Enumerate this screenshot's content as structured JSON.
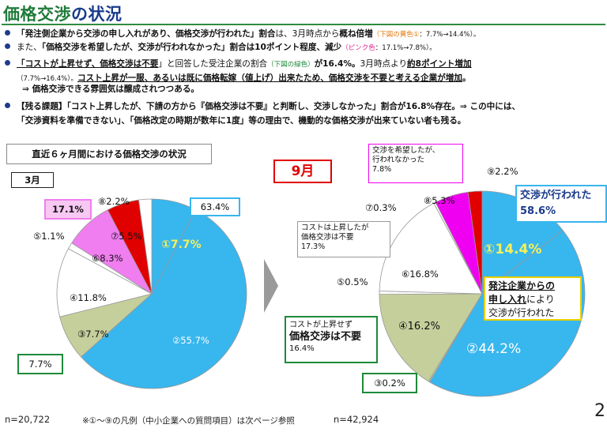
{
  "title": {
    "main": "価格交渉",
    "suffix": "の状況"
  },
  "bullets": [
    {
      "parts": [
        {
          "t": "「発注側企業から交渉の申し入れがあり、価格交渉が行われた」割合",
          "c": "b"
        },
        {
          "t": "は、3月時点から"
        },
        {
          "t": "概ね倍増",
          "c": "b"
        },
        {
          "t": "（下図の黄色①",
          "c": "orn"
        },
        {
          "t": "：7.7%→14.4%）。",
          "c": "sm"
        }
      ]
    },
    {
      "parts": [
        {
          "t": "また、"
        },
        {
          "t": "「価格交渉を希望したが、交渉が行われなかった」割合は10ポイント程度、減少",
          "c": "b"
        },
        {
          "t": "（ピンク色",
          "c": "pnk"
        },
        {
          "t": "：17.1%→7.8%）。",
          "c": "sm"
        }
      ]
    },
    {
      "parts": [
        {
          "t": "「コストが上昇せず、価格交渉は不要",
          "c": "b u"
        },
        {
          "t": "」と回答した受注企業の割合"
        },
        {
          "t": "（下図の緑色）",
          "c": "grn"
        },
        {
          "t": "が16.4%。",
          "c": "b"
        },
        {
          "t": "3月時点より"
        },
        {
          "t": "約8ポイント増加",
          "c": "b u"
        }
      ]
    },
    {
      "indent": true,
      "parts": [
        {
          "t": "（7.7%→16.4%）。",
          "c": "sm"
        },
        {
          "t": "コスト上昇が一服、あるいは既に価格転嫁（値上げ）出来たため、価格交渉を不要と考える企業が増加",
          "c": "b u"
        },
        {
          "t": "。",
          "c": "b"
        }
      ]
    },
    {
      "indent2": true,
      "parts": [
        {
          "t": "⇒ 価格交渉できる雰囲気は醸成されつつある。",
          "c": "b"
        }
      ]
    },
    {
      "parts": [
        {
          "t": "【残る課題】「コスト上昇したが、下請の方から『価格交渉は不要』と判断し、交渉しなかった」割合が16.8%存在。⇒ この中には、",
          "c": "b"
        }
      ]
    },
    {
      "indent": true,
      "parts": [
        {
          "t": "「交渉資料を準備できない」、「価格改定の時期が数年に1度」等の理由で、機動的な価格交渉が出来ていない者も残る。",
          "c": "b"
        }
      ]
    }
  ],
  "subtitle": "直近６ヶ月間における価格交渉の状況",
  "chart_data": [
    {
      "type": "pie",
      "title": "3月",
      "footnote": "n=20,722",
      "slices": [
        {
          "label": "①",
          "value": 7.7,
          "color": "#38b6ee"
        },
        {
          "label": "②",
          "value": 55.7,
          "color": "#38b6ee"
        },
        {
          "label": "③",
          "value": 7.7,
          "color": "#c4cf9c"
        },
        {
          "label": "④",
          "value": 11.8,
          "color": "#ffffff"
        },
        {
          "label": "⑤",
          "value": 1.1,
          "color": "#ffffff"
        },
        {
          "label": "⑥",
          "value": 8.3,
          "color": "#f07ef0"
        },
        {
          "label": "⑦",
          "value": 5.5,
          "color": "#e00000"
        },
        {
          "label": "⑧",
          "value": 2.2,
          "color": "#ffffff"
        }
      ],
      "texts": {
        "s1": "①7.7%",
        "s2": "②55.7%",
        "s3": "③7.7%",
        "s4": "④11.8%",
        "s5": "⑤1.1%",
        "s6": "⑥8.3%",
        "s7": "⑦5.5%",
        "s8": "⑧2.2%",
        "total12": "63.4%",
        "pink": "17.1%",
        "green": "7.7%"
      }
    },
    {
      "type": "pie",
      "title": "9月",
      "footnote": "n=42,924",
      "slices": [
        {
          "label": "①",
          "value": 14.4,
          "color": "#38b6ee"
        },
        {
          "label": "②",
          "value": 44.2,
          "color": "#38b6ee"
        },
        {
          "label": "③",
          "value": 0.2,
          "color": "#c4cf9c"
        },
        {
          "label": "④",
          "value": 16.2,
          "color": "#c4cf9c"
        },
        {
          "label": "⑤",
          "value": 0.5,
          "color": "#ffffff"
        },
        {
          "label": "⑥",
          "value": 16.8,
          "color": "#ffffff"
        },
        {
          "label": "⑦",
          "value": 0.3,
          "color": "#ffffff"
        },
        {
          "label": "⑧",
          "value": 5.3,
          "color": "#f000f0"
        },
        {
          "label": "⑨",
          "value": 2.2,
          "color": "#e00000"
        }
      ],
      "texts": {
        "s1": "①14.4%",
        "s2": "②44.2%",
        "s3": "③0.2%",
        "s4": "④16.2%",
        "s5": "⑤0.5%",
        "s6": "⑥16.8%",
        "s7": "⑦0.3%",
        "s8": "⑧5.3%",
        "s9": "⑨2.2%",
        "cost_up_1": "コストは上昇したが",
        "cost_up_2": "価格交渉は不要",
        "cost_up_3": "17.3%",
        "no_cost_1": "コストが上昇せず",
        "no_cost_2": "価格交渉は不要",
        "no_cost_3": "16.4%",
        "hope_1": "交渉を希望したが、",
        "hope_2": "行われなかった",
        "hope_3": "7.8%",
        "done_1": "交渉が行われた",
        "done_2": "58.6%",
        "req_1": "発注企業からの",
        "req_2": "申し入れ",
        "req_2b": "により",
        "req_3": "交渉が行われた"
      }
    }
  ],
  "footer": {
    "legend_note": "※①～⑨の凡例（中小企業への質問項目）は次ページ参照"
  },
  "page_number": "2"
}
